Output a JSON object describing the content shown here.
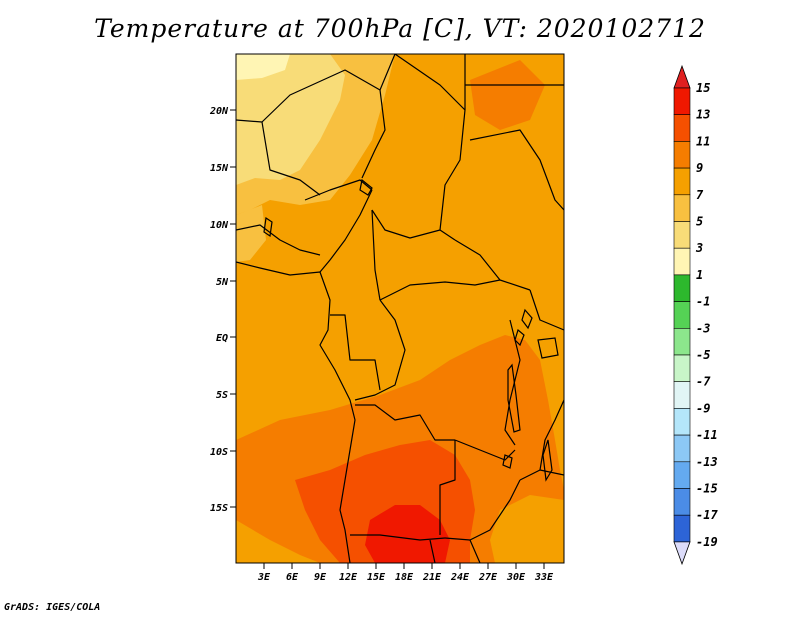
{
  "title": "Temperature at 700hPa [C], VT: 2020102712",
  "footer": "GrADS: IGES/COLA",
  "map": {
    "lat_labels": [
      "20N",
      "15N",
      "10N",
      "5N",
      "EQ",
      "5S",
      "10S",
      "15S"
    ],
    "lon_labels": [
      "3E",
      "6E",
      "9E",
      "12E",
      "15E",
      "18E",
      "21E",
      "24E",
      "27E",
      "30E",
      "33E"
    ]
  },
  "colorbar": {
    "levels": [
      "15",
      "13",
      "11",
      "9",
      "7",
      "5",
      "3",
      "1",
      "-1",
      "-3",
      "-5",
      "-7",
      "-9",
      "-11",
      "-13",
      "-15",
      "-17",
      "-19"
    ],
    "colors": [
      "#f01800",
      "#f55000",
      "#f57d00",
      "#f5a000",
      "#f8c040",
      "#f8dc78",
      "#fff5b4",
      "#2db82d",
      "#55d255",
      "#8ce68c",
      "#c8f5c8",
      "#e1f5f5",
      "#b4e6fa",
      "#8cc8f5",
      "#64aaf0",
      "#4b8ce6",
      "#2d64d7",
      "#1446c3",
      "#0a28a0",
      "#05146e"
    ],
    "top_arrow_color": "#e02020",
    "bottom_arrow_color": "#dcdcfa"
  }
}
